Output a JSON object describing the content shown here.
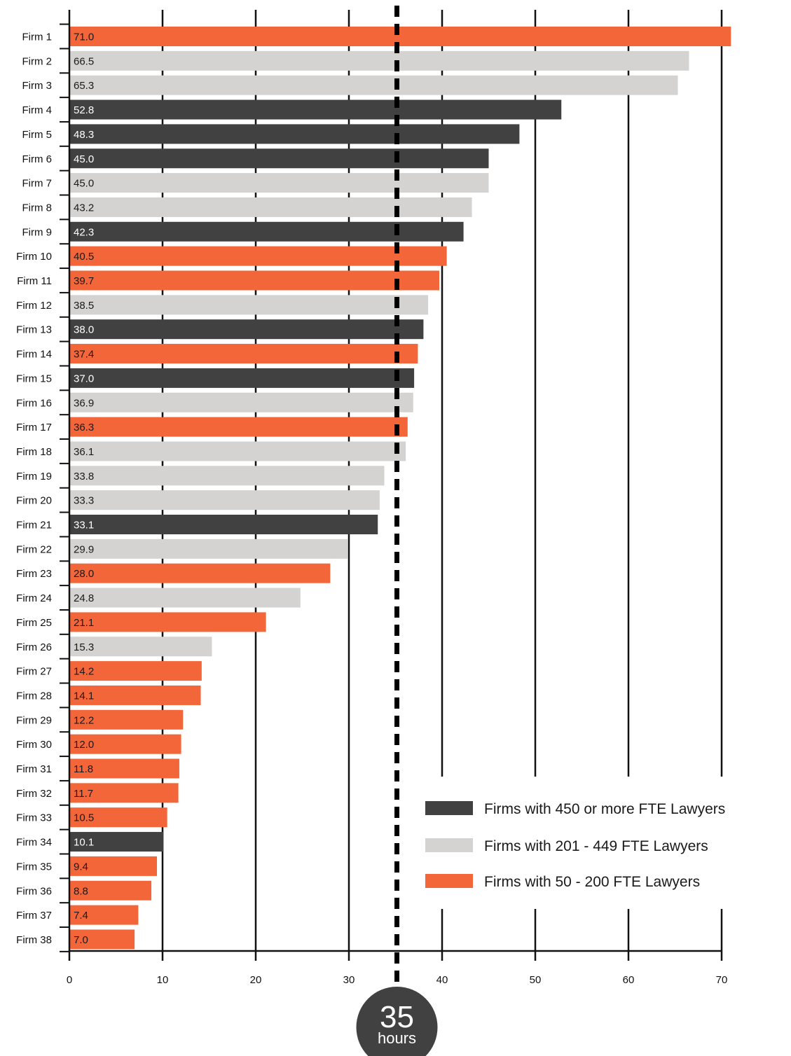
{
  "chart_data": {
    "type": "bar",
    "orientation": "horizontal",
    "categories": [
      "Firm 1",
      "Firm 2",
      "Firm 3",
      "Firm 4",
      "Firm 5",
      "Firm 6",
      "Firm 7",
      "Firm 8",
      "Firm 9",
      "Firm 10",
      "Firm 11",
      "Firm 12",
      "Firm 13",
      "Firm 14",
      "Firm 15",
      "Firm 16",
      "Firm 17",
      "Firm 18",
      "Firm 19",
      "Firm 20",
      "Firm 21",
      "Firm 22",
      "Firm 23",
      "Firm 24",
      "Firm 25",
      "Firm 26",
      "Firm 27",
      "Firm 28",
      "Firm 29",
      "Firm 30",
      "Firm 31",
      "Firm 32",
      "Firm 33",
      "Firm 34",
      "Firm 35",
      "Firm 36",
      "Firm 37",
      "Firm 38"
    ],
    "values": [
      71.0,
      66.5,
      65.3,
      52.8,
      48.3,
      45.0,
      45.0,
      43.2,
      42.3,
      40.5,
      39.7,
      38.5,
      38.0,
      37.4,
      37.0,
      36.9,
      36.3,
      36.1,
      33.8,
      33.3,
      33.1,
      29.9,
      28.0,
      24.8,
      21.1,
      15.3,
      14.2,
      14.1,
      12.2,
      12.0,
      11.8,
      11.7,
      10.5,
      10.1,
      9.4,
      8.8,
      7.4,
      7.0
    ],
    "value_labels": [
      "71.0",
      "66.5",
      "65.3",
      "52.8",
      "48.3",
      "45.0",
      "45.0",
      "43.2",
      "42.3",
      "40.5",
      "39.7",
      "38.5",
      "38.0",
      "37.4",
      "37.0",
      "36.9",
      "36.3",
      "36.1",
      "33.8",
      "33.3",
      "33.1",
      "29.9",
      "28.0",
      "24.8",
      "21.1",
      "15.3",
      "14.2",
      "14.1",
      "12.2",
      "12.0",
      "11.8",
      "11.7",
      "10.5",
      "10.1",
      "9.4",
      "8.8",
      "7.4",
      "7.0"
    ],
    "groups": [
      "small",
      "medium",
      "medium",
      "large",
      "large",
      "large",
      "medium",
      "medium",
      "large",
      "small",
      "small",
      "medium",
      "large",
      "small",
      "large",
      "medium",
      "small",
      "medium",
      "medium",
      "medium",
      "large",
      "medium",
      "small",
      "medium",
      "small",
      "medium",
      "small",
      "small",
      "small",
      "small",
      "small",
      "small",
      "small",
      "large",
      "small",
      "small",
      "small",
      "small"
    ],
    "series": [
      {
        "key": "large",
        "name": "Firms with 450 or more FTE Lawyers",
        "color": "#414141",
        "label_color": "#ffffff"
      },
      {
        "key": "medium",
        "name": "Firms with 201 - 449 FTE Lawyers",
        "color": "#d5d3d2",
        "label_color": "#1a1a1a"
      },
      {
        "key": "small",
        "name": "Firms with 50 - 200 FTE Lawyers",
        "color": "#f2663a",
        "label_color": "#1a1a1a"
      }
    ],
    "x_ticks": [
      0,
      10,
      20,
      30,
      40,
      50,
      60,
      70
    ],
    "x_tick_labels": [
      "0",
      "10",
      "20",
      "30",
      "40",
      "50",
      "60",
      "70"
    ],
    "xlim": [
      0,
      70
    ],
    "grid": true,
    "legend_position": "bottom-right",
    "reference_line": {
      "value": 35,
      "style": "dashed"
    },
    "badge": {
      "number": "35",
      "unit": "hours"
    }
  }
}
